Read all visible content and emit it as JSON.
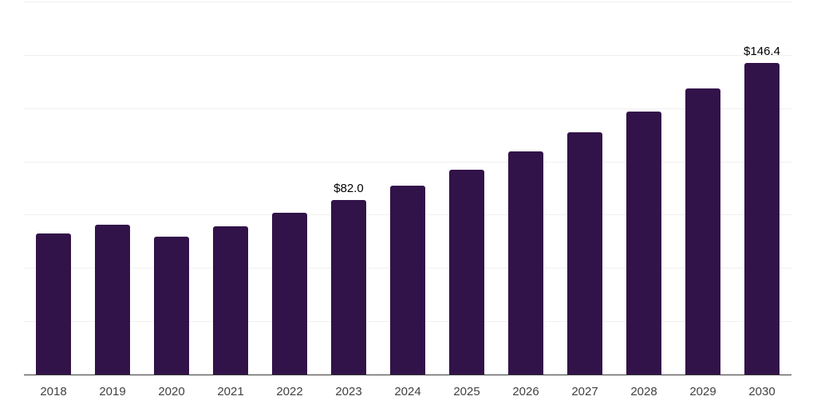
{
  "chart_data": {
    "type": "bar",
    "categories": [
      "2018",
      "2019",
      "2020",
      "2021",
      "2022",
      "2023",
      "2024",
      "2025",
      "2026",
      "2027",
      "2028",
      "2029",
      "2030"
    ],
    "values": [
      66.2,
      70.3,
      64.8,
      69.4,
      75.9,
      82.0,
      88.6,
      96.0,
      104.6,
      113.5,
      123.5,
      134.3,
      146.4
    ],
    "data_labels": [
      "",
      "",
      "",
      "",
      "",
      "$82.0",
      "",
      "",
      "",
      "",
      "",
      "",
      "$146.4"
    ],
    "title": "",
    "xlabel": "",
    "ylabel": "",
    "ylim": [
      0,
      175
    ],
    "gridline_interval": 25,
    "gridline_count": 8,
    "grid": true,
    "legend": false,
    "y_axis_labels_visible": false,
    "bar_color": "#321349",
    "gridline_color": "#f0f0f0",
    "axis_line_color": "#3a3a3a",
    "x_tick_label_color": "#414141",
    "data_label_color": "#000000",
    "background_color": "#ffffff"
  }
}
